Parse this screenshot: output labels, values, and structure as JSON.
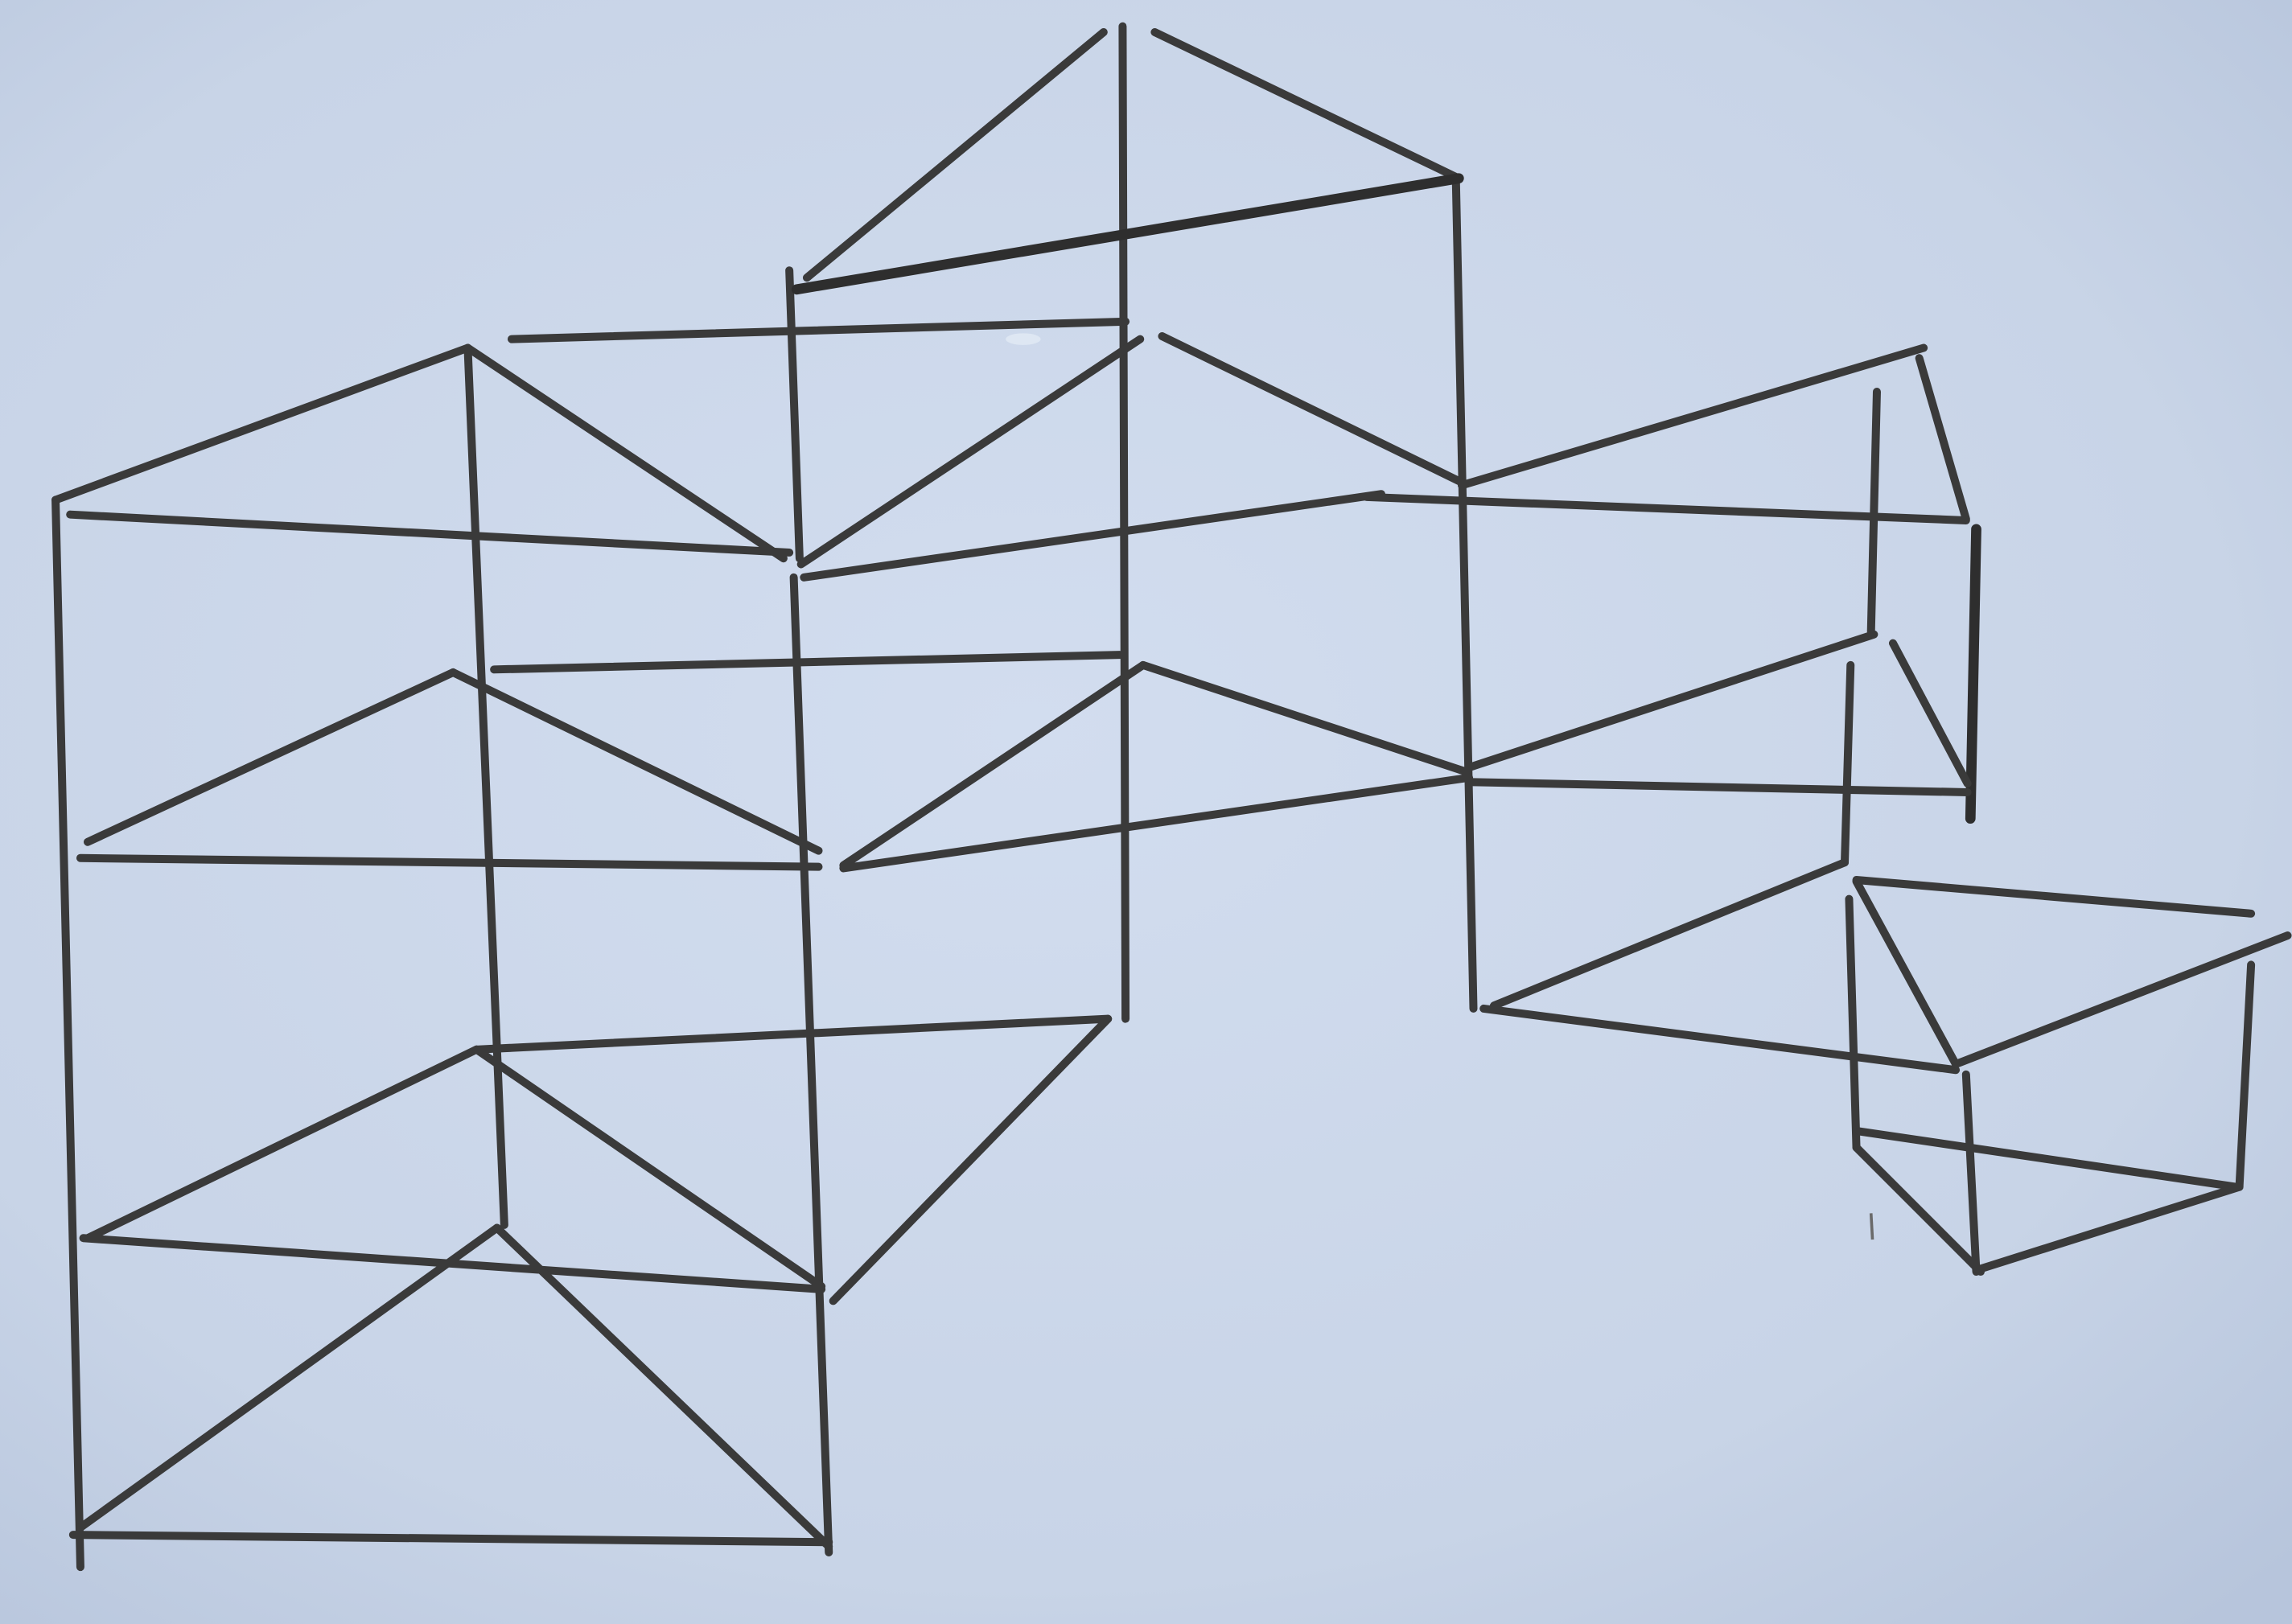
{
  "scene": {
    "subject": "pencil-sketch",
    "paper_color": "#c9d5e8",
    "pencil_color": "#3a3a3a"
  }
}
